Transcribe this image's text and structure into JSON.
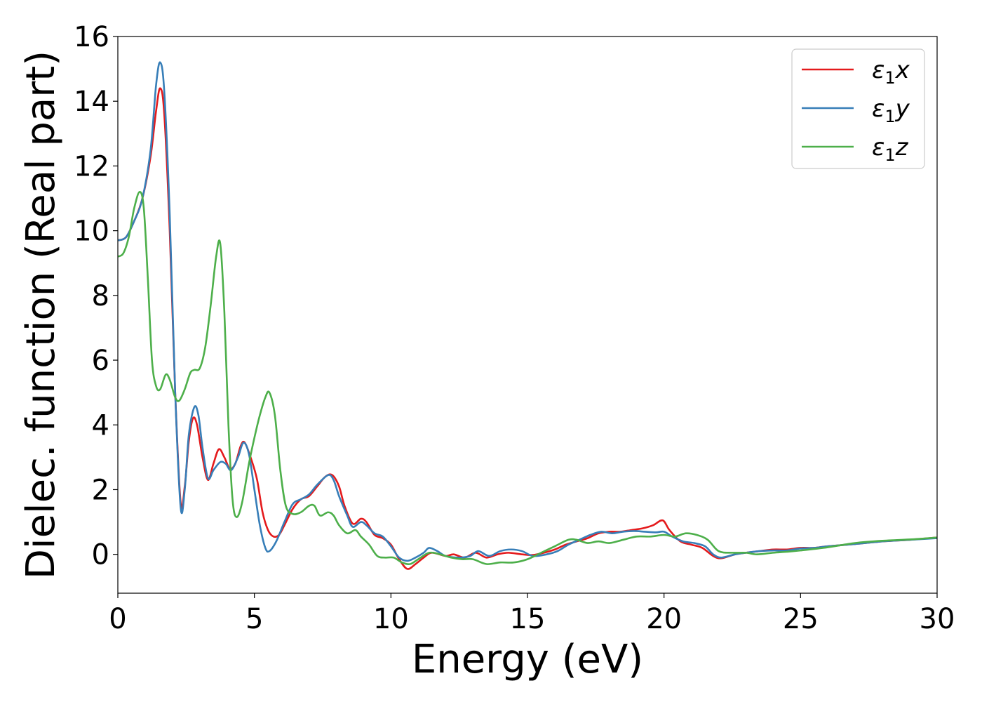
{
  "chart_data": {
    "type": "line",
    "xlabel": "Energy (eV)",
    "ylabel": "Dielec. function (Real part)",
    "xlim": [
      0,
      30
    ],
    "ylim": [
      -1.2,
      16
    ],
    "xticks": [
      0,
      5,
      10,
      15,
      20,
      25,
      30
    ],
    "yticks": [
      0,
      2,
      4,
      6,
      8,
      10,
      12,
      14,
      16
    ],
    "grid": false,
    "legend_position": "top-right",
    "series": [
      {
        "name": "ε1x",
        "name_main": "ε",
        "name_sub": "1",
        "name_tail": "x",
        "color": "#e41a1c",
        "points": [
          [
            0,
            9.7
          ],
          [
            0.3,
            9.8
          ],
          [
            0.6,
            10.3
          ],
          [
            0.9,
            11.0
          ],
          [
            1.2,
            12.3
          ],
          [
            1.4,
            13.7
          ],
          [
            1.55,
            14.4
          ],
          [
            1.7,
            13.6
          ],
          [
            1.9,
            10.0
          ],
          [
            2.1,
            5.0
          ],
          [
            2.3,
            1.6
          ],
          [
            2.45,
            2.1
          ],
          [
            2.6,
            3.5
          ],
          [
            2.75,
            4.2
          ],
          [
            2.9,
            4.0
          ],
          [
            3.1,
            3.0
          ],
          [
            3.3,
            2.3
          ],
          [
            3.5,
            2.8
          ],
          [
            3.7,
            3.25
          ],
          [
            3.9,
            3.0
          ],
          [
            4.1,
            2.65
          ],
          [
            4.3,
            2.8
          ],
          [
            4.5,
            3.35
          ],
          [
            4.65,
            3.45
          ],
          [
            4.9,
            2.9
          ],
          [
            5.1,
            2.3
          ],
          [
            5.3,
            1.3
          ],
          [
            5.5,
            0.75
          ],
          [
            5.7,
            0.55
          ],
          [
            5.9,
            0.6
          ],
          [
            6.1,
            0.9
          ],
          [
            6.4,
            1.4
          ],
          [
            6.7,
            1.7
          ],
          [
            7.0,
            1.8
          ],
          [
            7.3,
            2.1
          ],
          [
            7.6,
            2.4
          ],
          [
            7.85,
            2.45
          ],
          [
            8.1,
            2.1
          ],
          [
            8.3,
            1.5
          ],
          [
            8.6,
            0.95
          ],
          [
            8.9,
            1.1
          ],
          [
            9.1,
            1.0
          ],
          [
            9.4,
            0.6
          ],
          [
            9.7,
            0.5
          ],
          [
            10.0,
            0.3
          ],
          [
            10.3,
            -0.15
          ],
          [
            10.6,
            -0.45
          ],
          [
            10.9,
            -0.3
          ],
          [
            11.2,
            -0.1
          ],
          [
            11.5,
            0.05
          ],
          [
            12.0,
            -0.05
          ],
          [
            12.3,
            0.0
          ],
          [
            12.7,
            -0.1
          ],
          [
            13.1,
            0.05
          ],
          [
            13.5,
            -0.1
          ],
          [
            13.9,
            0.0
          ],
          [
            14.3,
            0.05
          ],
          [
            14.8,
            0.0
          ],
          [
            15.2,
            -0.02
          ],
          [
            15.6,
            0.05
          ],
          [
            16.0,
            0.15
          ],
          [
            16.4,
            0.3
          ],
          [
            16.8,
            0.4
          ],
          [
            17.2,
            0.5
          ],
          [
            17.6,
            0.65
          ],
          [
            18.0,
            0.7
          ],
          [
            18.4,
            0.7
          ],
          [
            18.8,
            0.75
          ],
          [
            19.2,
            0.8
          ],
          [
            19.6,
            0.9
          ],
          [
            19.95,
            1.05
          ],
          [
            20.2,
            0.75
          ],
          [
            20.6,
            0.4
          ],
          [
            21.0,
            0.3
          ],
          [
            21.4,
            0.2
          ],
          [
            21.8,
            -0.05
          ],
          [
            22.1,
            -0.12
          ],
          [
            22.6,
            0.0
          ],
          [
            23.0,
            0.05
          ],
          [
            23.5,
            0.1
          ],
          [
            24.0,
            0.15
          ],
          [
            24.5,
            0.15
          ],
          [
            25.0,
            0.2
          ],
          [
            25.5,
            0.2
          ],
          [
            26.0,
            0.25
          ],
          [
            27.0,
            0.32
          ],
          [
            28.0,
            0.4
          ],
          [
            29.0,
            0.45
          ],
          [
            30.0,
            0.52
          ]
        ]
      },
      {
        "name": "ε1y",
        "name_main": "ε",
        "name_sub": "1",
        "name_tail": "y",
        "color": "#377eb8",
        "points": [
          [
            0,
            9.7
          ],
          [
            0.3,
            9.8
          ],
          [
            0.6,
            10.3
          ],
          [
            0.9,
            11.0
          ],
          [
            1.2,
            12.5
          ],
          [
            1.4,
            14.5
          ],
          [
            1.55,
            15.2
          ],
          [
            1.7,
            14.3
          ],
          [
            1.9,
            10.5
          ],
          [
            2.1,
            5.0
          ],
          [
            2.3,
            1.45
          ],
          [
            2.45,
            2.0
          ],
          [
            2.6,
            3.7
          ],
          [
            2.8,
            4.55
          ],
          [
            2.95,
            4.3
          ],
          [
            3.1,
            3.3
          ],
          [
            3.3,
            2.35
          ],
          [
            3.5,
            2.6
          ],
          [
            3.75,
            2.85
          ],
          [
            3.95,
            2.8
          ],
          [
            4.15,
            2.6
          ],
          [
            4.4,
            3.0
          ],
          [
            4.6,
            3.45
          ],
          [
            4.8,
            3.1
          ],
          [
            5.0,
            2.0
          ],
          [
            5.2,
            0.9
          ],
          [
            5.4,
            0.2
          ],
          [
            5.55,
            0.1
          ],
          [
            5.8,
            0.4
          ],
          [
            6.1,
            1.0
          ],
          [
            6.4,
            1.55
          ],
          [
            6.7,
            1.7
          ],
          [
            7.0,
            1.85
          ],
          [
            7.3,
            2.15
          ],
          [
            7.7,
            2.45
          ],
          [
            7.9,
            2.3
          ],
          [
            8.1,
            1.8
          ],
          [
            8.4,
            1.2
          ],
          [
            8.6,
            0.85
          ],
          [
            8.9,
            1.0
          ],
          [
            9.1,
            0.9
          ],
          [
            9.4,
            0.65
          ],
          [
            9.7,
            0.55
          ],
          [
            10.0,
            0.25
          ],
          [
            10.3,
            -0.1
          ],
          [
            10.6,
            -0.2
          ],
          [
            10.9,
            -0.1
          ],
          [
            11.2,
            0.05
          ],
          [
            11.4,
            0.2
          ],
          [
            11.7,
            0.1
          ],
          [
            12.0,
            -0.05
          ],
          [
            12.5,
            -0.1
          ],
          [
            12.9,
            -0.05
          ],
          [
            13.2,
            0.1
          ],
          [
            13.6,
            -0.05
          ],
          [
            14.0,
            0.1
          ],
          [
            14.4,
            0.15
          ],
          [
            14.8,
            0.1
          ],
          [
            15.2,
            -0.05
          ],
          [
            15.7,
            0.0
          ],
          [
            16.1,
            0.1
          ],
          [
            16.5,
            0.3
          ],
          [
            16.9,
            0.45
          ],
          [
            17.3,
            0.6
          ],
          [
            17.7,
            0.7
          ],
          [
            18.1,
            0.65
          ],
          [
            18.5,
            0.7
          ],
          [
            18.9,
            0.72
          ],
          [
            19.3,
            0.7
          ],
          [
            19.7,
            0.68
          ],
          [
            20.0,
            0.7
          ],
          [
            20.3,
            0.55
          ],
          [
            20.7,
            0.4
          ],
          [
            21.1,
            0.35
          ],
          [
            21.5,
            0.25
          ],
          [
            21.8,
            0.0
          ],
          [
            22.1,
            -0.1
          ],
          [
            22.6,
            0.0
          ],
          [
            23.0,
            0.05
          ],
          [
            23.5,
            0.1
          ],
          [
            24.0,
            0.12
          ],
          [
            24.5,
            0.12
          ],
          [
            25.0,
            0.18
          ],
          [
            25.5,
            0.2
          ],
          [
            26.0,
            0.25
          ],
          [
            27.0,
            0.32
          ],
          [
            28.0,
            0.4
          ],
          [
            29.0,
            0.45
          ],
          [
            30.0,
            0.5
          ]
        ]
      },
      {
        "name": "ε1z",
        "name_main": "ε",
        "name_sub": "1",
        "name_tail": "z",
        "color": "#4daf4a",
        "points": [
          [
            0,
            9.2
          ],
          [
            0.2,
            9.3
          ],
          [
            0.4,
            9.8
          ],
          [
            0.6,
            10.7
          ],
          [
            0.8,
            11.2
          ],
          [
            0.95,
            10.7
          ],
          [
            1.1,
            8.5
          ],
          [
            1.25,
            6.0
          ],
          [
            1.4,
            5.2
          ],
          [
            1.55,
            5.1
          ],
          [
            1.75,
            5.55
          ],
          [
            1.9,
            5.4
          ],
          [
            2.1,
            4.85
          ],
          [
            2.25,
            4.75
          ],
          [
            2.45,
            5.1
          ],
          [
            2.65,
            5.6
          ],
          [
            2.8,
            5.7
          ],
          [
            3.0,
            5.75
          ],
          [
            3.2,
            6.4
          ],
          [
            3.4,
            7.7
          ],
          [
            3.6,
            9.2
          ],
          [
            3.75,
            9.6
          ],
          [
            3.9,
            7.5
          ],
          [
            4.05,
            4.0
          ],
          [
            4.2,
            1.7
          ],
          [
            4.35,
            1.15
          ],
          [
            4.55,
            1.6
          ],
          [
            4.8,
            2.8
          ],
          [
            5.0,
            3.6
          ],
          [
            5.2,
            4.3
          ],
          [
            5.4,
            4.85
          ],
          [
            5.55,
            5.0
          ],
          [
            5.75,
            4.3
          ],
          [
            5.95,
            2.6
          ],
          [
            6.15,
            1.5
          ],
          [
            6.4,
            1.25
          ],
          [
            6.7,
            1.3
          ],
          [
            7.0,
            1.5
          ],
          [
            7.2,
            1.5
          ],
          [
            7.4,
            1.2
          ],
          [
            7.7,
            1.3
          ],
          [
            7.9,
            1.2
          ],
          [
            8.1,
            0.9
          ],
          [
            8.4,
            0.65
          ],
          [
            8.7,
            0.75
          ],
          [
            8.9,
            0.55
          ],
          [
            9.2,
            0.3
          ],
          [
            9.5,
            -0.05
          ],
          [
            9.8,
            -0.1
          ],
          [
            10.1,
            -0.1
          ],
          [
            10.4,
            -0.25
          ],
          [
            10.7,
            -0.3
          ],
          [
            11.0,
            -0.15
          ],
          [
            11.4,
            0.05
          ],
          [
            11.8,
            0.0
          ],
          [
            12.2,
            -0.1
          ],
          [
            12.6,
            -0.15
          ],
          [
            13.0,
            -0.15
          ],
          [
            13.5,
            -0.3
          ],
          [
            14.0,
            -0.25
          ],
          [
            14.5,
            -0.25
          ],
          [
            15.0,
            -0.15
          ],
          [
            15.5,
            0.05
          ],
          [
            16.0,
            0.25
          ],
          [
            16.5,
            0.45
          ],
          [
            16.8,
            0.45
          ],
          [
            17.2,
            0.35
          ],
          [
            17.6,
            0.4
          ],
          [
            18.0,
            0.35
          ],
          [
            18.5,
            0.45
          ],
          [
            19.0,
            0.55
          ],
          [
            19.5,
            0.55
          ],
          [
            20.0,
            0.6
          ],
          [
            20.4,
            0.55
          ],
          [
            20.8,
            0.65
          ],
          [
            21.2,
            0.6
          ],
          [
            21.6,
            0.45
          ],
          [
            22.0,
            0.1
          ],
          [
            22.5,
            0.05
          ],
          [
            23.0,
            0.05
          ],
          [
            23.4,
            0.0
          ],
          [
            24.0,
            0.05
          ],
          [
            24.5,
            0.08
          ],
          [
            25.0,
            0.12
          ],
          [
            26.0,
            0.22
          ],
          [
            27.0,
            0.35
          ],
          [
            28.0,
            0.42
          ],
          [
            29.0,
            0.46
          ],
          [
            30.0,
            0.52
          ]
        ]
      }
    ]
  }
}
